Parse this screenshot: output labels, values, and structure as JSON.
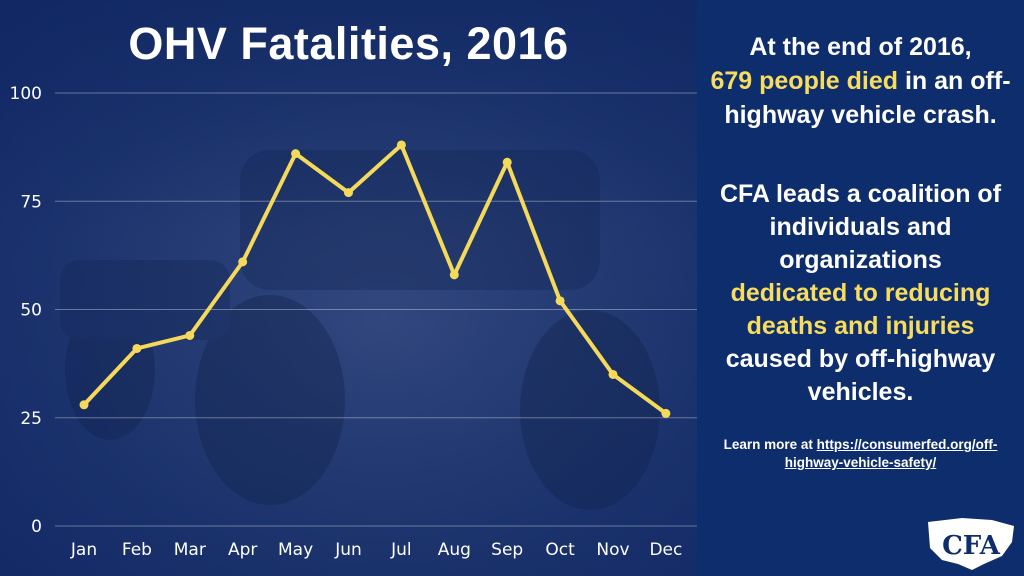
{
  "chart_data": {
    "type": "line",
    "title": "OHV Fatalities, 2016",
    "categories": [
      "Jan",
      "Feb",
      "Mar",
      "Apr",
      "May",
      "Jun",
      "Jul",
      "Aug",
      "Sep",
      "Oct",
      "Nov",
      "Dec"
    ],
    "series": [
      {
        "values": [
          28,
          41,
          44,
          61,
          86,
          77,
          88,
          58,
          84,
          52,
          35,
          26
        ]
      }
    ],
    "yticks": [
      0,
      25,
      50,
      75,
      100
    ],
    "ylim": [
      0,
      100
    ],
    "grid": true,
    "line_color": "#f4d95a"
  },
  "panel": {
    "p1_a": "At the end of 2016,",
    "p1_b": "679 people died",
    "p1_c": "in an off-highway vehicle crash.",
    "p2_a": "CFA leads a coalition of individuals and organizations",
    "p2_b": "dedicated to reducing deaths and injuries",
    "p2_c": "caused by off-highway vehicles.",
    "learn_prefix": "Learn more at",
    "learn_link": "https://consumerfed.org/off-highway-vehicle-safety/",
    "logo_text": "CFA",
    "highlight_color": "#f7dc5e"
  }
}
